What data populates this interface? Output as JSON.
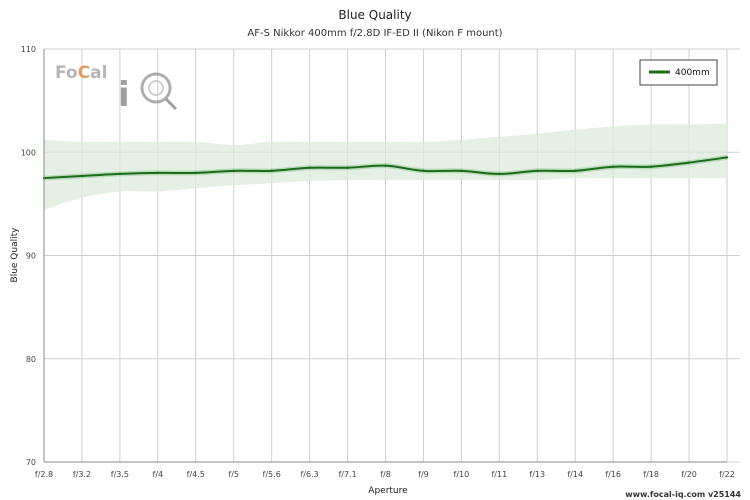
{
  "page": {
    "title": "Blue Quality",
    "subtitle": "AF-S Nikkor 400mm f/2.8D IF-ED II (Nikon F mount)",
    "footer": "www.focal-iq.com  v25144",
    "logo_text": "FoCal iQ"
  },
  "chart_data": {
    "type": "line",
    "title": "Blue Quality",
    "subtitle": "AF-S Nikkor 400mm f/2.8D IF-ED II (Nikon F mount)",
    "xlabel": "Aperture",
    "ylabel": "Blue Quality",
    "categories": [
      "f/2.8",
      "f/3.2",
      "f/3.5",
      "f/4",
      "f/4.5",
      "f/5",
      "f/5.6",
      "f/6.3",
      "f/7.1",
      "f/8",
      "f/9",
      "f/10",
      "f/11",
      "f/13",
      "f/14",
      "f/16",
      "f/18",
      "f/20",
      "f/22"
    ],
    "ylim": [
      70,
      110
    ],
    "yticks": [
      70,
      80,
      90,
      100,
      110
    ],
    "grid": true,
    "legend_position": "top-right",
    "colors": {
      "line": "#1b6b1b",
      "band": "#dcebdc"
    },
    "series": [
      {
        "name": "400mm",
        "values": [
          97.5,
          97.7,
          97.9,
          98.0,
          98.0,
          98.2,
          98.2,
          98.5,
          98.5,
          98.7,
          98.2,
          98.2,
          97.9,
          98.2,
          98.2,
          98.6,
          98.6,
          99.0,
          99.5
        ],
        "band_upper": [
          101.2,
          101.0,
          101.0,
          101.0,
          101.0,
          100.7,
          101.0,
          101.0,
          101.0,
          101.0,
          101.0,
          101.2,
          101.5,
          101.8,
          102.2,
          102.5,
          102.7,
          102.7,
          102.8
        ],
        "band_lower": [
          94.4,
          95.6,
          96.2,
          96.2,
          96.5,
          96.8,
          97.0,
          97.2,
          97.3,
          97.3,
          97.3,
          97.3,
          97.3,
          97.3,
          97.5,
          97.5,
          97.5,
          97.5,
          97.5
        ]
      }
    ]
  }
}
